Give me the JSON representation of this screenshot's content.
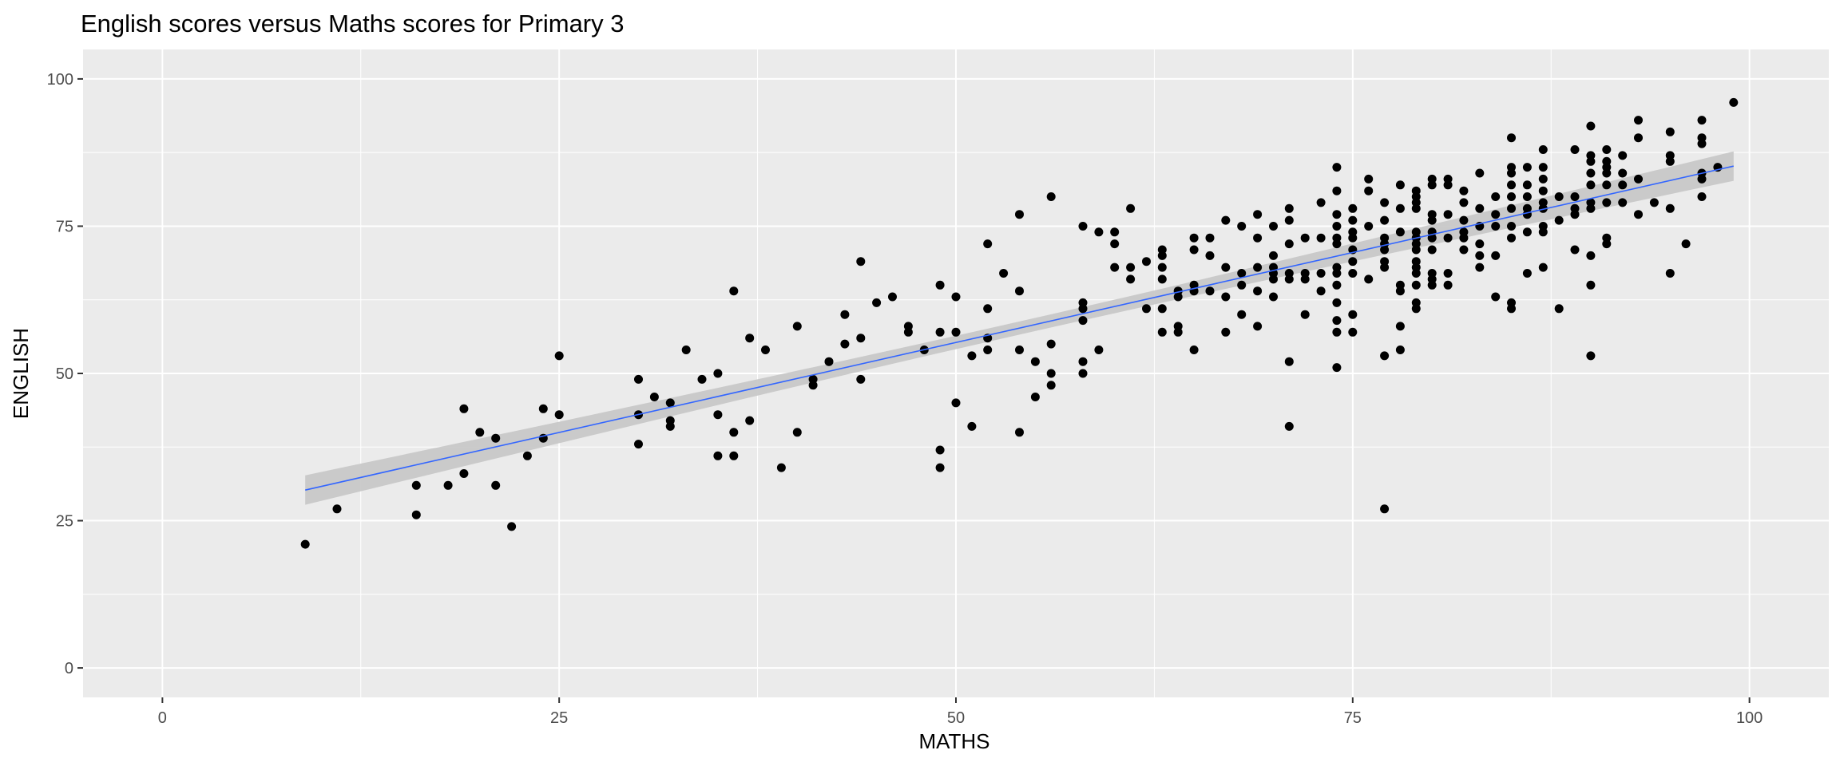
{
  "chart_data": {
    "type": "scatter",
    "title": "English scores versus Maths scores for Primary 3",
    "xlabel": "MATHS",
    "ylabel": "ENGLISH",
    "xlim": [
      -5,
      105
    ],
    "ylim": [
      -5,
      105
    ],
    "x_ticks": [
      0,
      25,
      50,
      75,
      100
    ],
    "y_ticks": [
      0,
      25,
      50,
      75,
      100
    ],
    "x_tick_labels": [
      "0",
      "25",
      "50",
      "75",
      "100"
    ],
    "y_tick_labels": [
      "0",
      "25",
      "50",
      "75",
      "100"
    ],
    "grid": true,
    "legend": "none",
    "colors": {
      "panel": "#ebebeb",
      "grid": "#ffffff",
      "point": "#000000",
      "fit_line": "#3366ff",
      "confidence_band": "#c8c8c8"
    },
    "points": [
      [
        9,
        21
      ],
      [
        11,
        27
      ],
      [
        16,
        26
      ],
      [
        16,
        31
      ],
      [
        18,
        31
      ],
      [
        19,
        33
      ],
      [
        19,
        44
      ],
      [
        20,
        40
      ],
      [
        21,
        39
      ],
      [
        21,
        31
      ],
      [
        22,
        24
      ],
      [
        23,
        36
      ],
      [
        24,
        39
      ],
      [
        24,
        44
      ],
      [
        25,
        43
      ],
      [
        25,
        53
      ],
      [
        30,
        49
      ],
      [
        30,
        43
      ],
      [
        30,
        38
      ],
      [
        31,
        46
      ],
      [
        32,
        45
      ],
      [
        32,
        42
      ],
      [
        32,
        41
      ],
      [
        33,
        54
      ],
      [
        34,
        49
      ],
      [
        35,
        50
      ],
      [
        35,
        43
      ],
      [
        35,
        36
      ],
      [
        36,
        64
      ],
      [
        36,
        36
      ],
      [
        36,
        40
      ],
      [
        37,
        56
      ],
      [
        37,
        42
      ],
      [
        38,
        54
      ],
      [
        39,
        34
      ],
      [
        40,
        58
      ],
      [
        40,
        40
      ],
      [
        41,
        49
      ],
      [
        41,
        48
      ],
      [
        42,
        52
      ],
      [
        43,
        60
      ],
      [
        43,
        55
      ],
      [
        44,
        69
      ],
      [
        44,
        56
      ],
      [
        44,
        49
      ],
      [
        45,
        62
      ],
      [
        46,
        63
      ],
      [
        47,
        58
      ],
      [
        47,
        57
      ],
      [
        48,
        54
      ],
      [
        49,
        65
      ],
      [
        49,
        57
      ],
      [
        49,
        37
      ],
      [
        49,
        34
      ],
      [
        50,
        63
      ],
      [
        50,
        57
      ],
      [
        50,
        45
      ],
      [
        51,
        53
      ],
      [
        51,
        41
      ],
      [
        52,
        72
      ],
      [
        52,
        61
      ],
      [
        52,
        56
      ],
      [
        52,
        54
      ],
      [
        53,
        67
      ],
      [
        54,
        77
      ],
      [
        54,
        64
      ],
      [
        54,
        54
      ],
      [
        54,
        40
      ],
      [
        55,
        52
      ],
      [
        55,
        46
      ],
      [
        56,
        80
      ],
      [
        56,
        55
      ],
      [
        56,
        50
      ],
      [
        56,
        48
      ],
      [
        58,
        75
      ],
      [
        58,
        62
      ],
      [
        58,
        61
      ],
      [
        58,
        59
      ],
      [
        58,
        52
      ],
      [
        58,
        50
      ],
      [
        59,
        74
      ],
      [
        59,
        54
      ],
      [
        60,
        74
      ],
      [
        60,
        72
      ],
      [
        60,
        68
      ],
      [
        61,
        78
      ],
      [
        61,
        68
      ],
      [
        61,
        66
      ],
      [
        62,
        69
      ],
      [
        62,
        61
      ],
      [
        63,
        71
      ],
      [
        63,
        70
      ],
      [
        63,
        68
      ],
      [
        63,
        66
      ],
      [
        63,
        61
      ],
      [
        63,
        57
      ],
      [
        64,
        64
      ],
      [
        64,
        63
      ],
      [
        64,
        58
      ],
      [
        64,
        57
      ],
      [
        65,
        73
      ],
      [
        65,
        71
      ],
      [
        65,
        65
      ],
      [
        65,
        64
      ],
      [
        65,
        54
      ],
      [
        66,
        73
      ],
      [
        66,
        70
      ],
      [
        66,
        64
      ],
      [
        67,
        76
      ],
      [
        67,
        68
      ],
      [
        67,
        63
      ],
      [
        67,
        57
      ],
      [
        68,
        75
      ],
      [
        68,
        67
      ],
      [
        68,
        65
      ],
      [
        68,
        60
      ],
      [
        69,
        77
      ],
      [
        69,
        73
      ],
      [
        69,
        68
      ],
      [
        69,
        64
      ],
      [
        69,
        58
      ],
      [
        70,
        75
      ],
      [
        70,
        70
      ],
      [
        70,
        68
      ],
      [
        70,
        67
      ],
      [
        70,
        66
      ],
      [
        70,
        63
      ],
      [
        71,
        78
      ],
      [
        71,
        76
      ],
      [
        71,
        72
      ],
      [
        71,
        67
      ],
      [
        71,
        66
      ],
      [
        71,
        52
      ],
      [
        71,
        41
      ],
      [
        72,
        73
      ],
      [
        72,
        67
      ],
      [
        72,
        66
      ],
      [
        72,
        60
      ],
      [
        73,
        79
      ],
      [
        73,
        73
      ],
      [
        73,
        67
      ],
      [
        73,
        64
      ],
      [
        74,
        85
      ],
      [
        74,
        81
      ],
      [
        74,
        77
      ],
      [
        74,
        75
      ],
      [
        74,
        73
      ],
      [
        74,
        72
      ],
      [
        74,
        68
      ],
      [
        74,
        67
      ],
      [
        74,
        65
      ],
      [
        74,
        62
      ],
      [
        74,
        59
      ],
      [
        74,
        57
      ],
      [
        74,
        51
      ],
      [
        75,
        78
      ],
      [
        75,
        76
      ],
      [
        75,
        74
      ],
      [
        75,
        73
      ],
      [
        75,
        71
      ],
      [
        75,
        69
      ],
      [
        75,
        67
      ],
      [
        75,
        60
      ],
      [
        75,
        57
      ],
      [
        76,
        83
      ],
      [
        76,
        81
      ],
      [
        76,
        75
      ],
      [
        76,
        66
      ],
      [
        77,
        79
      ],
      [
        77,
        76
      ],
      [
        77,
        73
      ],
      [
        77,
        72
      ],
      [
        77,
        71
      ],
      [
        77,
        69
      ],
      [
        77,
        68
      ],
      [
        77,
        53
      ],
      [
        77,
        27
      ],
      [
        78,
        82
      ],
      [
        78,
        78
      ],
      [
        78,
        74
      ],
      [
        78,
        65
      ],
      [
        78,
        64
      ],
      [
        78,
        58
      ],
      [
        78,
        54
      ],
      [
        79,
        81
      ],
      [
        79,
        80
      ],
      [
        79,
        79
      ],
      [
        79,
        78
      ],
      [
        79,
        74
      ],
      [
        79,
        73
      ],
      [
        79,
        72
      ],
      [
        79,
        71
      ],
      [
        79,
        69
      ],
      [
        79,
        68
      ],
      [
        79,
        67
      ],
      [
        79,
        65
      ],
      [
        79,
        62
      ],
      [
        79,
        61
      ],
      [
        80,
        83
      ],
      [
        80,
        82
      ],
      [
        80,
        77
      ],
      [
        80,
        76
      ],
      [
        80,
        74
      ],
      [
        80,
        73
      ],
      [
        80,
        71
      ],
      [
        80,
        67
      ],
      [
        80,
        66
      ],
      [
        80,
        65
      ],
      [
        81,
        83
      ],
      [
        81,
        82
      ],
      [
        81,
        77
      ],
      [
        81,
        73
      ],
      [
        81,
        67
      ],
      [
        81,
        65
      ],
      [
        82,
        81
      ],
      [
        82,
        79
      ],
      [
        82,
        76
      ],
      [
        82,
        74
      ],
      [
        82,
        73
      ],
      [
        82,
        71
      ],
      [
        83,
        84
      ],
      [
        83,
        78
      ],
      [
        83,
        75
      ],
      [
        83,
        72
      ],
      [
        83,
        70
      ],
      [
        83,
        68
      ],
      [
        84,
        80
      ],
      [
        84,
        77
      ],
      [
        84,
        75
      ],
      [
        84,
        70
      ],
      [
        84,
        63
      ],
      [
        85,
        90
      ],
      [
        85,
        85
      ],
      [
        85,
        84
      ],
      [
        85,
        82
      ],
      [
        85,
        80
      ],
      [
        85,
        78
      ],
      [
        85,
        75
      ],
      [
        85,
        73
      ],
      [
        85,
        62
      ],
      [
        85,
        61
      ],
      [
        86,
        85
      ],
      [
        86,
        82
      ],
      [
        86,
        80
      ],
      [
        86,
        78
      ],
      [
        86,
        77
      ],
      [
        86,
        74
      ],
      [
        86,
        67
      ],
      [
        87,
        88
      ],
      [
        87,
        85
      ],
      [
        87,
        83
      ],
      [
        87,
        81
      ],
      [
        87,
        79
      ],
      [
        87,
        78
      ],
      [
        87,
        75
      ],
      [
        87,
        74
      ],
      [
        87,
        68
      ],
      [
        88,
        80
      ],
      [
        88,
        76
      ],
      [
        88,
        61
      ],
      [
        89,
        88
      ],
      [
        89,
        80
      ],
      [
        89,
        78
      ],
      [
        89,
        77
      ],
      [
        89,
        71
      ],
      [
        90,
        92
      ],
      [
        90,
        87
      ],
      [
        90,
        86
      ],
      [
        90,
        84
      ],
      [
        90,
        82
      ],
      [
        90,
        79
      ],
      [
        90,
        78
      ],
      [
        90,
        70
      ],
      [
        90,
        65
      ],
      [
        90,
        53
      ],
      [
        91,
        88
      ],
      [
        91,
        86
      ],
      [
        91,
        85
      ],
      [
        91,
        84
      ],
      [
        91,
        82
      ],
      [
        91,
        79
      ],
      [
        91,
        73
      ],
      [
        91,
        72
      ],
      [
        92,
        87
      ],
      [
        92,
        84
      ],
      [
        92,
        82
      ],
      [
        92,
        79
      ],
      [
        93,
        93
      ],
      [
        93,
        90
      ],
      [
        93,
        83
      ],
      [
        93,
        77
      ],
      [
        94,
        79
      ],
      [
        95,
        91
      ],
      [
        95,
        87
      ],
      [
        95,
        86
      ],
      [
        95,
        78
      ],
      [
        95,
        67
      ],
      [
        96,
        72
      ],
      [
        97,
        93
      ],
      [
        97,
        90
      ],
      [
        97,
        89
      ],
      [
        97,
        84
      ],
      [
        97,
        83
      ],
      [
        97,
        80
      ],
      [
        98,
        85
      ],
      [
        99,
        96
      ]
    ],
    "fit": {
      "method": "linear",
      "x_start": 9,
      "y_start": 30.2,
      "x_end": 99,
      "y_end": 85.2,
      "band": 2.5
    }
  }
}
